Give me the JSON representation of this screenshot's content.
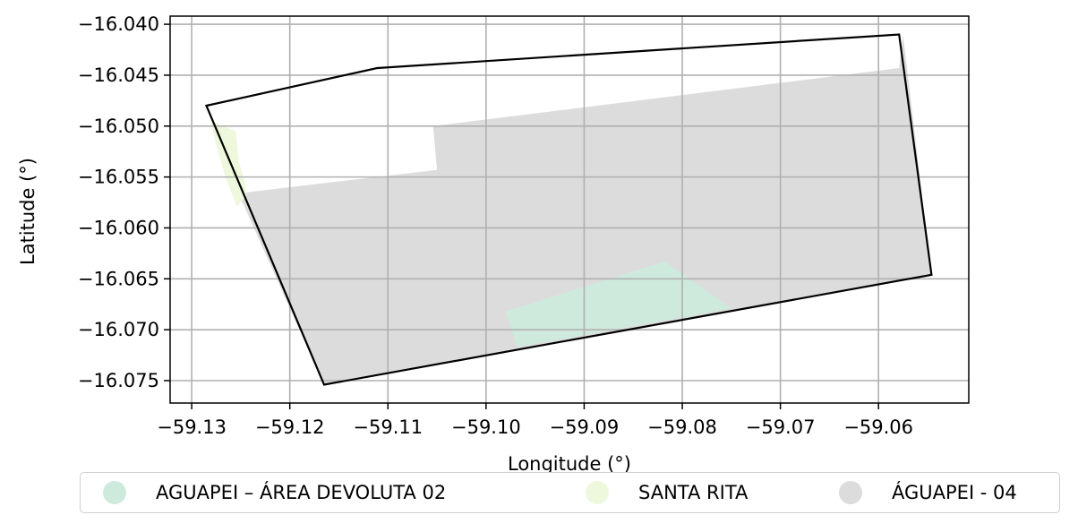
{
  "axes": {
    "xlabel": "Longitude (°)",
    "ylabel": "Latitude (°)",
    "xticks": [
      "−59.13",
      "−59.12",
      "−59.11",
      "−59.10",
      "−59.09",
      "−59.08",
      "−59.07",
      "−59.06"
    ],
    "yticks": [
      "−16.040",
      "−16.045",
      "−16.050",
      "−16.055",
      "−16.060",
      "−16.065",
      "−16.070",
      "−16.075"
    ],
    "xlim": [
      -59.1322,
      -59.0508
    ],
    "ylim": [
      -16.0772,
      -16.0392
    ],
    "grid": true
  },
  "legend": {
    "placement": "bottom-center",
    "items": [
      {
        "label": "AGUAPEI – ÁREA DEVOLUTA 02",
        "color": "#ceeadd"
      },
      {
        "label": "SANTA RITA",
        "color": "#eef8dc"
      },
      {
        "label": "ÁGUAPEI - 04",
        "color": "#dcdcdc"
      }
    ]
  },
  "map_layers": {
    "outline": {
      "label": "",
      "stroke": "#000000",
      "coords": [
        [
          -59.1285,
          -16.048
        ],
        [
          -59.1111,
          -16.0443
        ],
        [
          -59.0579,
          -16.041
        ],
        [
          -59.0546,
          -16.0646
        ],
        [
          -59.1165,
          -16.0754
        ]
      ]
    },
    "parcels": [
      {
        "name": "ÁGUAPEI - 04",
        "color": "#dcdcdc",
        "coords": [
          [
            -59.1256,
            -16.0561
          ],
          [
            -59.1244,
            -16.0565
          ],
          [
            -59.105,
            -16.0543
          ],
          [
            -59.1054,
            -16.05
          ],
          [
            -59.0579,
            -16.0443
          ],
          [
            -59.0575,
            -16.041
          ],
          [
            -59.0546,
            -16.0646
          ],
          [
            -59.1165,
            -16.0754
          ],
          [
            -59.1266,
            -16.0537
          ]
        ]
      },
      {
        "name": "AGUAPEI – ÁREA DEVOLUTA 02",
        "color": "#ceeadd",
        "coords": [
          [
            -59.098,
            -16.0682
          ],
          [
            -59.0818,
            -16.0633
          ],
          [
            -59.075,
            -16.0679
          ],
          [
            -59.0968,
            -16.0717
          ]
        ]
      },
      {
        "name": "SANTA RITA",
        "color": "#eef8dc",
        "coords": [
          [
            -59.128,
            -16.0495
          ],
          [
            -59.1255,
            -16.0505
          ],
          [
            -59.1252,
            -16.0535
          ],
          [
            -59.1247,
            -16.0551
          ],
          [
            -59.1244,
            -16.0568
          ],
          [
            -59.1254,
            -16.0579
          ],
          [
            -59.1266,
            -16.0549
          ],
          [
            -59.128,
            -16.0501
          ]
        ]
      }
    ]
  }
}
